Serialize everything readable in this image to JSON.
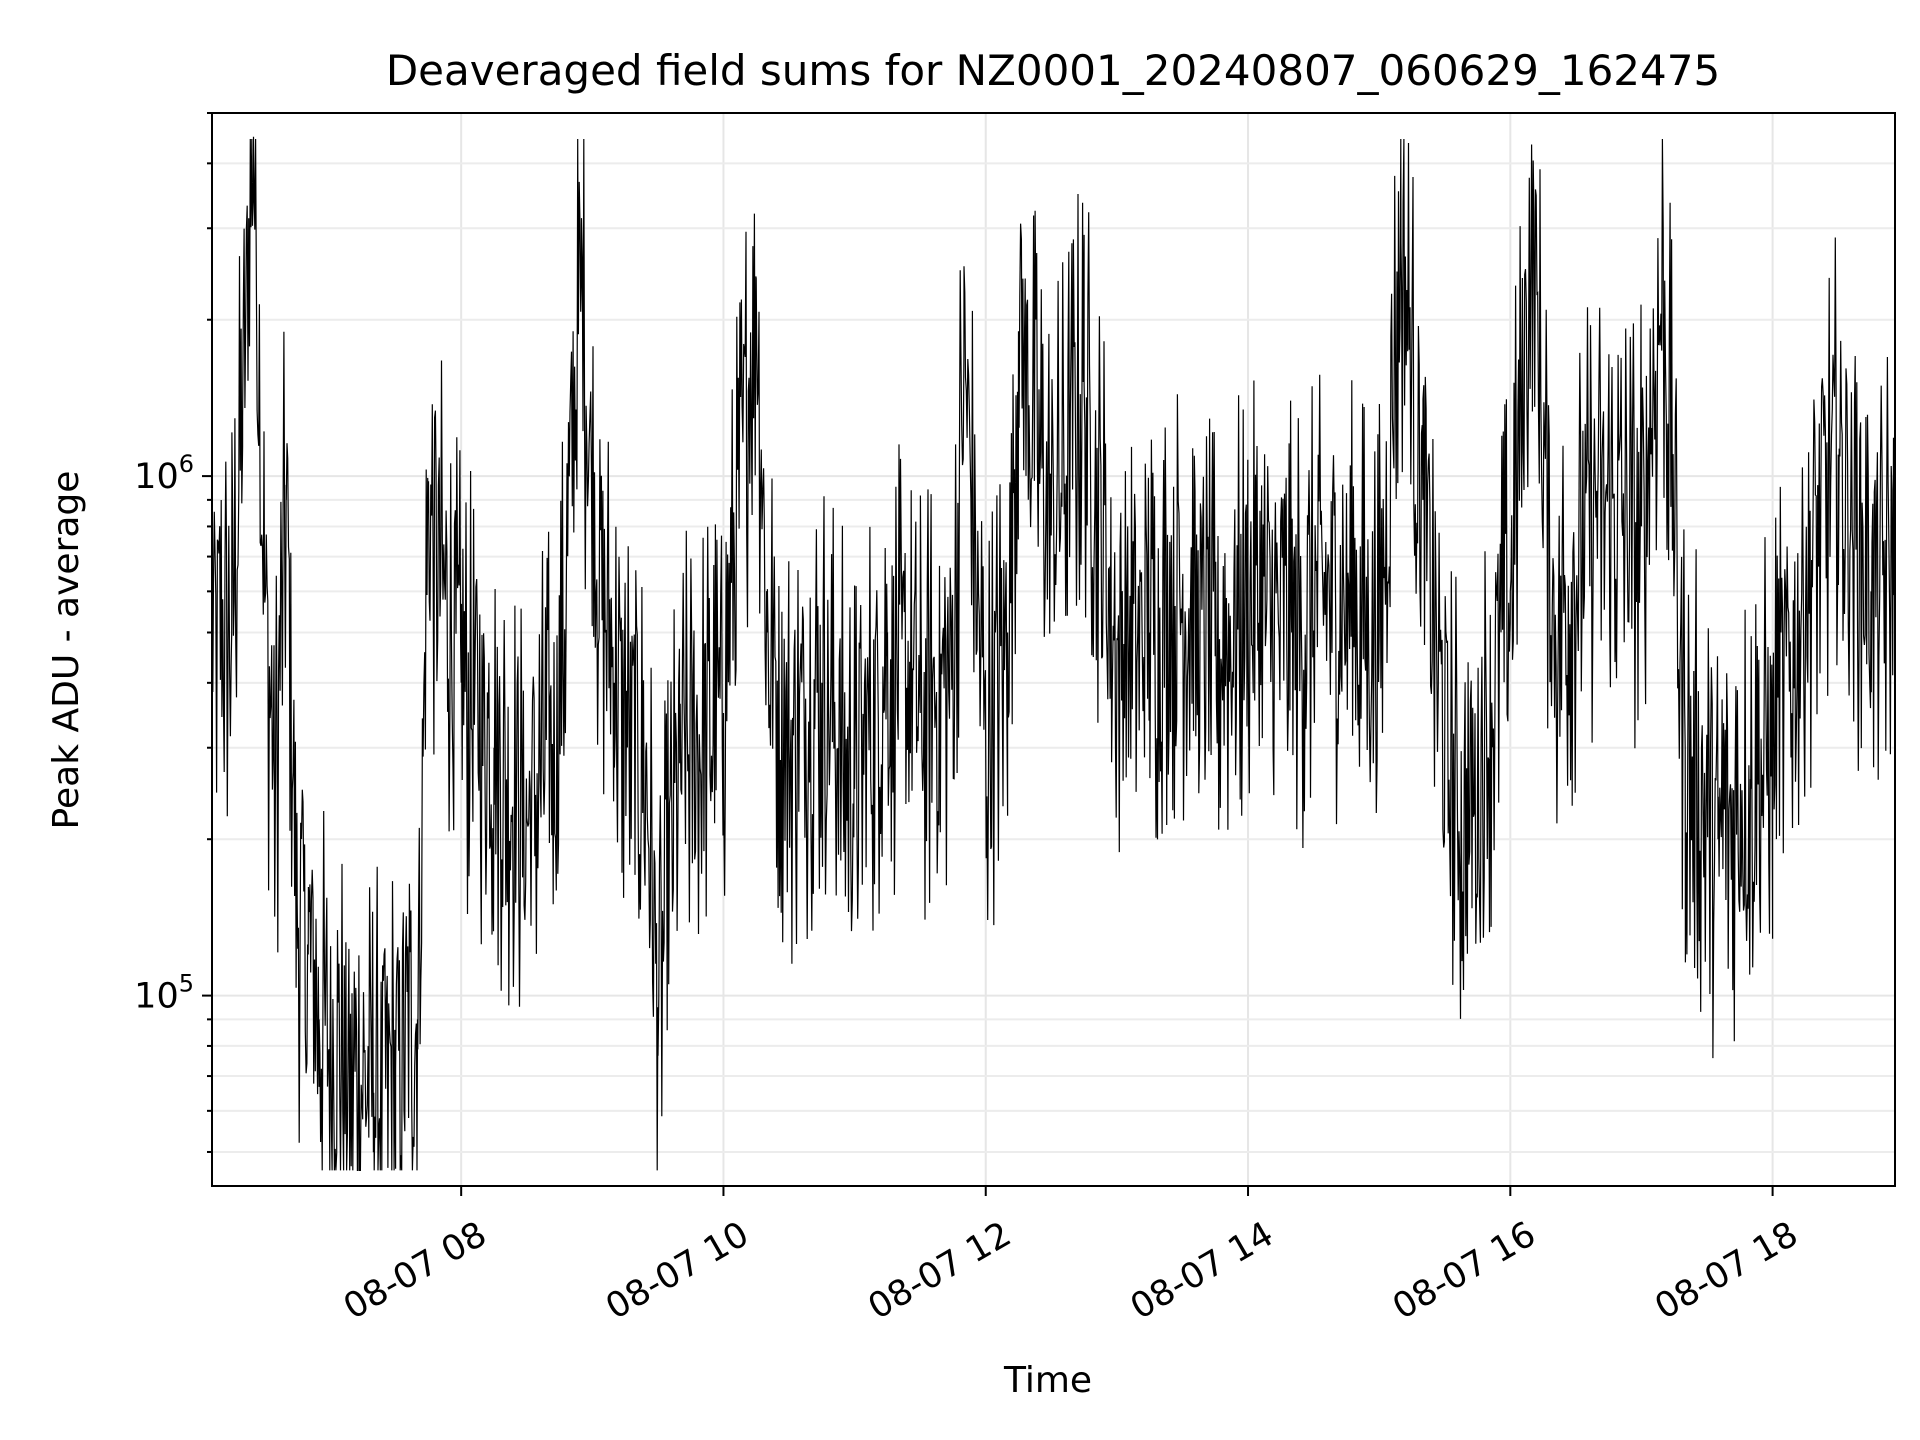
{
  "chart_data": {
    "type": "line",
    "title": "Deaveraged field sums for NZ0001_20240807_060629_162475",
    "xlabel": "Time",
    "ylabel": "Peak ADU - average",
    "x_axis": {
      "type": "time",
      "range": [
        "2024-08-07 06:06",
        "2024-08-07 18:56"
      ],
      "tick_labels": [
        "08-07 08",
        "08-07 10",
        "08-07 12",
        "08-07 14",
        "08-07 16",
        "08-07 18"
      ],
      "tick_values": [
        "2024-08-07 08:00",
        "2024-08-07 10:00",
        "2024-08-07 12:00",
        "2024-08-07 14:00",
        "2024-08-07 16:00",
        "2024-08-07 18:00"
      ]
    },
    "y_axis": {
      "scale": "log",
      "range": [
        43000,
        5000000
      ],
      "major_ticks": [
        100000,
        1000000
      ]
    },
    "grid": true,
    "line_color": "#000000",
    "series": [
      {
        "x": [
          "2024-08-07 06:06",
          "2024-08-07 06:15",
          "2024-08-07 06:20",
          "2024-08-07 06:25",
          "2024-08-07 06:30",
          "2024-08-07 06:35",
          "2024-08-07 06:40",
          "2024-08-07 06:45",
          "2024-08-07 06:50",
          "2024-08-07 06:55",
          "2024-08-07 07:00",
          "2024-08-07 07:10",
          "2024-08-07 07:20",
          "2024-08-07 07:30",
          "2024-08-07 07:40",
          "2024-08-07 07:45",
          "2024-08-07 08:00",
          "2024-08-07 08:15",
          "2024-08-07 08:30",
          "2024-08-07 08:45",
          "2024-08-07 08:55",
          "2024-08-07 09:00",
          "2024-08-07 09:10",
          "2024-08-07 09:25",
          "2024-08-07 09:30",
          "2024-08-07 09:40",
          "2024-08-07 10:00",
          "2024-08-07 10:15",
          "2024-08-07 10:20",
          "2024-08-07 10:30",
          "2024-08-07 10:45",
          "2024-08-07 11:00",
          "2024-08-07 11:15",
          "2024-08-07 11:30",
          "2024-08-07 11:45",
          "2024-08-07 11:50",
          "2024-08-07 12:00",
          "2024-08-07 12:10",
          "2024-08-07 12:15",
          "2024-08-07 12:30",
          "2024-08-07 12:45",
          "2024-08-07 13:00",
          "2024-08-07 13:15",
          "2024-08-07 13:30",
          "2024-08-07 13:45",
          "2024-08-07 14:00",
          "2024-08-07 14:20",
          "2024-08-07 14:40",
          "2024-08-07 15:00",
          "2024-08-07 15:10",
          "2024-08-07 15:20",
          "2024-08-07 15:30",
          "2024-08-07 15:40",
          "2024-08-07 15:45",
          "2024-08-07 16:00",
          "2024-08-07 16:10",
          "2024-08-07 16:20",
          "2024-08-07 16:40",
          "2024-08-07 17:00",
          "2024-08-07 17:10",
          "2024-08-07 17:20",
          "2024-08-07 17:35",
          "2024-08-07 17:50",
          "2024-08-07 18:00",
          "2024-08-07 18:20",
          "2024-08-07 18:30",
          "2024-08-07 18:45",
          "2024-08-07 18:56"
        ],
        "y": [
          480000,
          500000,
          1300000,
          4500000,
          600000,
          250000,
          900000,
          150000,
          120000,
          90000,
          80000,
          70000,
          65000,
          72000,
          90000,
          850000,
          400000,
          300000,
          220000,
          350000,
          2400000,
          900000,
          400000,
          250000,
          95000,
          280000,
          350000,
          2400000,
          500000,
          300000,
          400000,
          250000,
          450000,
          350000,
          420000,
          1700000,
          300000,
          500000,
          1900000,
          800000,
          1500000,
          450000,
          500000,
          600000,
          450000,
          550000,
          500000,
          600000,
          500000,
          2800000,
          900000,
          300000,
          200000,
          250000,
          600000,
          2900000,
          500000,
          900000,
          800000,
          2300000,
          300000,
          200000,
          250000,
          300000,
          800000,
          1100000,
          600000,
          700000
        ]
      }
    ]
  }
}
